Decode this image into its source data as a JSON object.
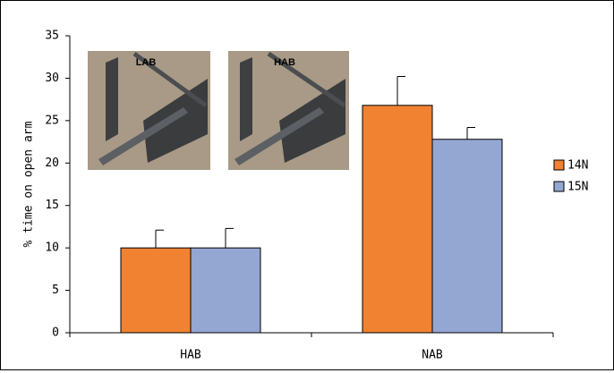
{
  "chart_data": {
    "type": "bar",
    "ylabel": "% time on open arm",
    "categories": [
      "HAB",
      "NAB"
    ],
    "series": [
      {
        "name": "14N",
        "color": "#f08232",
        "values": [
          10,
          26.8
        ],
        "errors": [
          2.1,
          3.4
        ]
      },
      {
        "name": "15N",
        "color": "#94a6d2",
        "values": [
          10,
          22.8
        ],
        "errors": [
          2.3,
          1.4
        ]
      }
    ],
    "ylim": [
      0,
      35
    ],
    "yticks": [
      0,
      5,
      10,
      15,
      20,
      25,
      30,
      35
    ],
    "legend": "right",
    "annotations": [
      "LAB",
      "HAB"
    ]
  }
}
